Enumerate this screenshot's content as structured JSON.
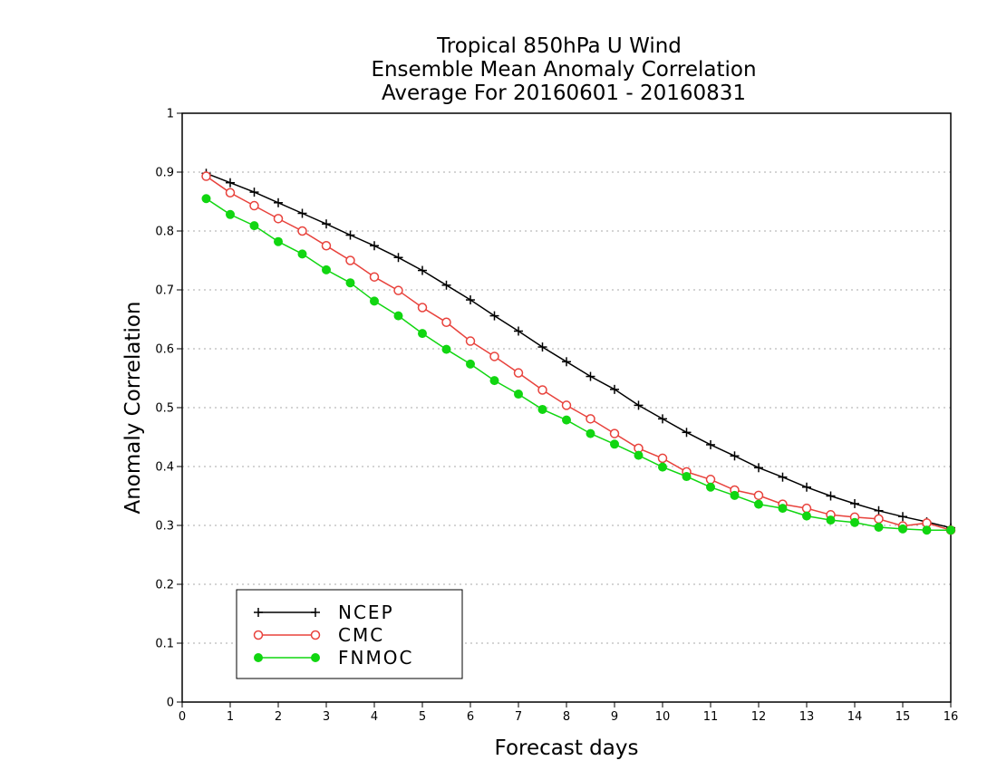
{
  "chart_data": {
    "type": "line",
    "title": [
      "Tropical 850hPa U Wind",
      "Ensemble Mean Anomaly Correlation",
      "Average For 20160601 - 20160831"
    ],
    "xlabel": "Forecast days",
    "ylabel": "Anomaly Correlation",
    "xlim": [
      0,
      16
    ],
    "ylim": [
      0,
      1
    ],
    "xticks": [
      0,
      1,
      2,
      3,
      4,
      5,
      6,
      7,
      8,
      9,
      10,
      11,
      12,
      13,
      14,
      15,
      16
    ],
    "yticks": [
      0,
      0.1,
      0.2,
      0.3,
      0.4,
      0.5,
      0.6,
      0.7,
      0.8,
      0.9,
      1
    ],
    "grid": "horizontal dotted",
    "legend_position": "bottom-left",
    "x": [
      0.5,
      1,
      1.5,
      2,
      2.5,
      3,
      3.5,
      4,
      4.5,
      5,
      5.5,
      6,
      6.5,
      7,
      7.5,
      8,
      8.5,
      9,
      9.5,
      10,
      10.5,
      11,
      11.5,
      12,
      12.5,
      13,
      13.5,
      14,
      14.5,
      15,
      15.5,
      16
    ],
    "series": [
      {
        "name": "NCEP",
        "color": "#000000",
        "marker": "plus",
        "values": [
          0.898,
          0.882,
          0.866,
          0.848,
          0.83,
          0.812,
          0.793,
          0.775,
          0.755,
          0.733,
          0.708,
          0.683,
          0.656,
          0.63,
          0.603,
          0.578,
          0.553,
          0.531,
          0.504,
          0.481,
          0.458,
          0.437,
          0.418,
          0.398,
          0.382,
          0.365,
          0.35,
          0.337,
          0.325,
          0.315,
          0.306,
          0.296
        ]
      },
      {
        "name": "CMC",
        "color": "#e8423c",
        "marker": "open-circle",
        "values": [
          0.893,
          0.865,
          0.843,
          0.821,
          0.8,
          0.775,
          0.75,
          0.722,
          0.699,
          0.67,
          0.645,
          0.613,
          0.587,
          0.559,
          0.53,
          0.504,
          0.481,
          0.456,
          0.431,
          0.414,
          0.391,
          0.378,
          0.36,
          0.351,
          0.336,
          0.329,
          0.318,
          0.314,
          0.311,
          0.299,
          0.304,
          0.292
        ]
      },
      {
        "name": "FNMOC",
        "color": "#11d611",
        "marker": "filled-circle",
        "values": [
          0.855,
          0.828,
          0.809,
          0.782,
          0.761,
          0.734,
          0.712,
          0.681,
          0.656,
          0.626,
          0.599,
          0.574,
          0.546,
          0.523,
          0.497,
          0.479,
          0.456,
          0.438,
          0.419,
          0.399,
          0.383,
          0.365,
          0.351,
          0.336,
          0.329,
          0.316,
          0.309,
          0.305,
          0.297,
          0.294,
          0.292,
          0.292
        ]
      }
    ]
  }
}
